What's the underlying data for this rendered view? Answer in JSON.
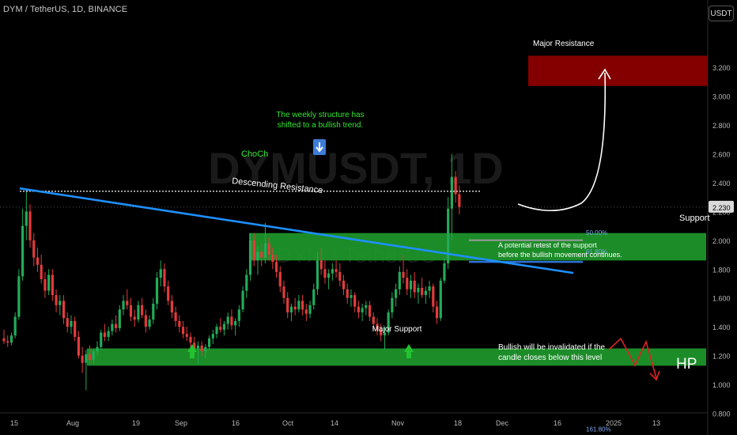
{
  "header": {
    "ticker": "DYM / TetherUS, 1D, BINANCE",
    "currency_button": "USDT"
  },
  "watermark": {
    "symbol": "DYMUSDT, 1D",
    "name": "DYM / TetherUS"
  },
  "colors": {
    "up": "#22ab5a",
    "down": "#e23b3b",
    "support_zone": "#1f9b2c",
    "resistance_zone": "#8b0000",
    "trendline": "#1e90ff",
    "annotation_green": "#32e532"
  },
  "chart_data": {
    "type": "candlestick",
    "y_axis": {
      "ticks": [
        "3.200",
        "3.000",
        "2.800",
        "2.600",
        "2.400",
        "2.200",
        "2.000",
        "1.800",
        "1.600",
        "1.400",
        "1.200",
        "1.000",
        "0.800"
      ],
      "range": [
        0.62,
        3.4
      ],
      "current_price": "2.230"
    },
    "x_axis": {
      "ticks": [
        "15",
        "Aug",
        "19",
        "Sep",
        "16",
        "Oct",
        "14",
        "Nov",
        "18",
        "Dec",
        "16",
        "2025",
        "13"
      ]
    },
    "candles": [
      {
        "o": 1.32,
        "h": 1.38,
        "l": 1.28,
        "c": 1.3
      },
      {
        "o": 1.3,
        "h": 1.34,
        "l": 1.26,
        "c": 1.29
      },
      {
        "o": 1.29,
        "h": 1.36,
        "l": 1.27,
        "c": 1.34
      },
      {
        "o": 1.34,
        "h": 1.5,
        "l": 1.32,
        "c": 1.47
      },
      {
        "o": 1.47,
        "h": 1.8,
        "l": 1.45,
        "c": 1.75
      },
      {
        "o": 1.75,
        "h": 2.22,
        "l": 1.72,
        "c": 2.1
      },
      {
        "o": 2.1,
        "h": 2.35,
        "l": 2.0,
        "c": 2.2
      },
      {
        "o": 2.2,
        "h": 2.25,
        "l": 1.95,
        "c": 2.0
      },
      {
        "o": 2.0,
        "h": 2.05,
        "l": 1.82,
        "c": 1.88
      },
      {
        "o": 1.88,
        "h": 1.95,
        "l": 1.78,
        "c": 1.83
      },
      {
        "o": 1.83,
        "h": 1.9,
        "l": 1.7,
        "c": 1.73
      },
      {
        "o": 1.73,
        "h": 1.78,
        "l": 1.6,
        "c": 1.65
      },
      {
        "o": 1.65,
        "h": 1.8,
        "l": 1.62,
        "c": 1.76
      },
      {
        "o": 1.76,
        "h": 1.8,
        "l": 1.58,
        "c": 1.62
      },
      {
        "o": 1.62,
        "h": 1.66,
        "l": 1.5,
        "c": 1.55
      },
      {
        "o": 1.55,
        "h": 1.62,
        "l": 1.48,
        "c": 1.58
      },
      {
        "o": 1.58,
        "h": 1.62,
        "l": 1.42,
        "c": 1.46
      },
      {
        "o": 1.46,
        "h": 1.5,
        "l": 1.36,
        "c": 1.4
      },
      {
        "o": 1.4,
        "h": 1.48,
        "l": 1.35,
        "c": 1.44
      },
      {
        "o": 1.44,
        "h": 1.47,
        "l": 1.3,
        "c": 1.33
      },
      {
        "o": 1.33,
        "h": 1.37,
        "l": 1.18,
        "c": 1.2
      },
      {
        "o": 1.2,
        "h": 1.26,
        "l": 1.08,
        "c": 1.15
      },
      {
        "o": 1.15,
        "h": 1.24,
        "l": 0.96,
        "c": 1.21
      },
      {
        "o": 1.21,
        "h": 1.27,
        "l": 1.14,
        "c": 1.17
      },
      {
        "o": 1.17,
        "h": 1.25,
        "l": 1.14,
        "c": 1.23
      },
      {
        "o": 1.23,
        "h": 1.3,
        "l": 1.2,
        "c": 1.26
      },
      {
        "o": 1.26,
        "h": 1.38,
        "l": 1.24,
        "c": 1.36
      },
      {
        "o": 1.36,
        "h": 1.42,
        "l": 1.3,
        "c": 1.33
      },
      {
        "o": 1.33,
        "h": 1.4,
        "l": 1.3,
        "c": 1.37
      },
      {
        "o": 1.37,
        "h": 1.45,
        "l": 1.34,
        "c": 1.42
      },
      {
        "o": 1.42,
        "h": 1.48,
        "l": 1.36,
        "c": 1.39
      },
      {
        "o": 1.39,
        "h": 1.55,
        "l": 1.37,
        "c": 1.52
      },
      {
        "o": 1.52,
        "h": 1.62,
        "l": 1.48,
        "c": 1.58
      },
      {
        "o": 1.58,
        "h": 1.66,
        "l": 1.52,
        "c": 1.55
      },
      {
        "o": 1.55,
        "h": 1.6,
        "l": 1.44,
        "c": 1.47
      },
      {
        "o": 1.47,
        "h": 1.52,
        "l": 1.4,
        "c": 1.45
      },
      {
        "o": 1.45,
        "h": 1.58,
        "l": 1.43,
        "c": 1.55
      },
      {
        "o": 1.55,
        "h": 1.6,
        "l": 1.46,
        "c": 1.48
      },
      {
        "o": 1.48,
        "h": 1.52,
        "l": 1.36,
        "c": 1.4
      },
      {
        "o": 1.4,
        "h": 1.48,
        "l": 1.38,
        "c": 1.45
      },
      {
        "o": 1.45,
        "h": 1.6,
        "l": 1.42,
        "c": 1.56
      },
      {
        "o": 1.56,
        "h": 1.78,
        "l": 1.52,
        "c": 1.74
      },
      {
        "o": 1.74,
        "h": 1.86,
        "l": 1.68,
        "c": 1.8
      },
      {
        "o": 1.8,
        "h": 1.84,
        "l": 1.64,
        "c": 1.68
      },
      {
        "o": 1.68,
        "h": 1.72,
        "l": 1.55,
        "c": 1.58
      },
      {
        "o": 1.58,
        "h": 1.62,
        "l": 1.46,
        "c": 1.5
      },
      {
        "o": 1.5,
        "h": 1.54,
        "l": 1.4,
        "c": 1.44
      },
      {
        "o": 1.44,
        "h": 1.48,
        "l": 1.36,
        "c": 1.4
      },
      {
        "o": 1.4,
        "h": 1.44,
        "l": 1.32,
        "c": 1.35
      },
      {
        "o": 1.35,
        "h": 1.4,
        "l": 1.3,
        "c": 1.33
      },
      {
        "o": 1.33,
        "h": 1.36,
        "l": 1.26,
        "c": 1.29
      },
      {
        "o": 1.29,
        "h": 1.33,
        "l": 1.22,
        "c": 1.25
      },
      {
        "o": 1.25,
        "h": 1.3,
        "l": 1.14,
        "c": 1.27
      },
      {
        "o": 1.27,
        "h": 1.3,
        "l": 1.2,
        "c": 1.23
      },
      {
        "o": 1.23,
        "h": 1.28,
        "l": 1.18,
        "c": 1.26
      },
      {
        "o": 1.26,
        "h": 1.34,
        "l": 1.24,
        "c": 1.32
      },
      {
        "o": 1.32,
        "h": 1.38,
        "l": 1.28,
        "c": 1.35
      },
      {
        "o": 1.35,
        "h": 1.42,
        "l": 1.32,
        "c": 1.4
      },
      {
        "o": 1.4,
        "h": 1.46,
        "l": 1.36,
        "c": 1.38
      },
      {
        "o": 1.38,
        "h": 1.44,
        "l": 1.34,
        "c": 1.42
      },
      {
        "o": 1.42,
        "h": 1.5,
        "l": 1.38,
        "c": 1.47
      },
      {
        "o": 1.47,
        "h": 1.52,
        "l": 1.38,
        "c": 1.41
      },
      {
        "o": 1.41,
        "h": 1.46,
        "l": 1.34,
        "c": 1.44
      },
      {
        "o": 1.44,
        "h": 1.55,
        "l": 1.4,
        "c": 1.52
      },
      {
        "o": 1.52,
        "h": 1.68,
        "l": 1.5,
        "c": 1.65
      },
      {
        "o": 1.65,
        "h": 1.8,
        "l": 1.6,
        "c": 1.76
      },
      {
        "o": 1.76,
        "h": 2.05,
        "l": 1.72,
        "c": 2.0
      },
      {
        "o": 2.0,
        "h": 2.05,
        "l": 1.82,
        "c": 1.86
      },
      {
        "o": 1.86,
        "h": 1.96,
        "l": 1.76,
        "c": 1.92
      },
      {
        "o": 1.92,
        "h": 1.98,
        "l": 1.82,
        "c": 1.88
      },
      {
        "o": 1.88,
        "h": 2.12,
        "l": 1.84,
        "c": 1.98
      },
      {
        "o": 1.98,
        "h": 2.02,
        "l": 1.86,
        "c": 1.9
      },
      {
        "o": 1.9,
        "h": 1.95,
        "l": 1.8,
        "c": 1.85
      },
      {
        "o": 1.85,
        "h": 1.9,
        "l": 1.74,
        "c": 1.78
      },
      {
        "o": 1.78,
        "h": 1.82,
        "l": 1.64,
        "c": 1.68
      },
      {
        "o": 1.68,
        "h": 1.72,
        "l": 1.56,
        "c": 1.6
      },
      {
        "o": 1.6,
        "h": 1.64,
        "l": 1.46,
        "c": 1.5
      },
      {
        "o": 1.5,
        "h": 1.56,
        "l": 1.44,
        "c": 1.54
      },
      {
        "o": 1.54,
        "h": 1.6,
        "l": 1.48,
        "c": 1.52
      },
      {
        "o": 1.52,
        "h": 1.62,
        "l": 1.5,
        "c": 1.58
      },
      {
        "o": 1.58,
        "h": 1.62,
        "l": 1.48,
        "c": 1.52
      },
      {
        "o": 1.52,
        "h": 1.56,
        "l": 1.44,
        "c": 1.49
      },
      {
        "o": 1.49,
        "h": 1.58,
        "l": 1.46,
        "c": 1.55
      },
      {
        "o": 1.55,
        "h": 1.7,
        "l": 1.52,
        "c": 1.66
      },
      {
        "o": 1.66,
        "h": 1.92,
        "l": 1.62,
        "c": 1.86
      },
      {
        "o": 1.86,
        "h": 1.94,
        "l": 1.76,
        "c": 1.8
      },
      {
        "o": 1.8,
        "h": 1.86,
        "l": 1.7,
        "c": 1.74
      },
      {
        "o": 1.74,
        "h": 1.8,
        "l": 1.66,
        "c": 1.77
      },
      {
        "o": 1.77,
        "h": 1.84,
        "l": 1.72,
        "c": 1.8
      },
      {
        "o": 1.8,
        "h": 1.86,
        "l": 1.74,
        "c": 1.78
      },
      {
        "o": 1.78,
        "h": 1.84,
        "l": 1.68,
        "c": 1.72
      },
      {
        "o": 1.72,
        "h": 1.76,
        "l": 1.62,
        "c": 1.66
      },
      {
        "o": 1.66,
        "h": 1.7,
        "l": 1.56,
        "c": 1.6
      },
      {
        "o": 1.6,
        "h": 1.66,
        "l": 1.54,
        "c": 1.62
      },
      {
        "o": 1.62,
        "h": 1.64,
        "l": 1.5,
        "c": 1.54
      },
      {
        "o": 1.54,
        "h": 1.58,
        "l": 1.46,
        "c": 1.5
      },
      {
        "o": 1.5,
        "h": 1.56,
        "l": 1.44,
        "c": 1.53
      },
      {
        "o": 1.53,
        "h": 1.58,
        "l": 1.48,
        "c": 1.55
      },
      {
        "o": 1.55,
        "h": 1.58,
        "l": 1.44,
        "c": 1.47
      },
      {
        "o": 1.47,
        "h": 1.5,
        "l": 1.38,
        "c": 1.42
      },
      {
        "o": 1.42,
        "h": 1.46,
        "l": 1.34,
        "c": 1.38
      },
      {
        "o": 1.38,
        "h": 1.42,
        "l": 1.3,
        "c": 1.34
      },
      {
        "o": 1.34,
        "h": 1.4,
        "l": 1.24,
        "c": 1.36
      },
      {
        "o": 1.36,
        "h": 1.52,
        "l": 1.34,
        "c": 1.5
      },
      {
        "o": 1.5,
        "h": 1.64,
        "l": 1.46,
        "c": 1.6
      },
      {
        "o": 1.6,
        "h": 1.7,
        "l": 1.54,
        "c": 1.66
      },
      {
        "o": 1.66,
        "h": 1.82,
        "l": 1.62,
        "c": 1.78
      },
      {
        "o": 1.78,
        "h": 1.9,
        "l": 1.7,
        "c": 1.74
      },
      {
        "o": 1.74,
        "h": 1.8,
        "l": 1.62,
        "c": 1.66
      },
      {
        "o": 1.66,
        "h": 1.76,
        "l": 1.6,
        "c": 1.72
      },
      {
        "o": 1.72,
        "h": 1.78,
        "l": 1.6,
        "c": 1.64
      },
      {
        "o": 1.64,
        "h": 1.7,
        "l": 1.56,
        "c": 1.67
      },
      {
        "o": 1.67,
        "h": 1.74,
        "l": 1.6,
        "c": 1.62
      },
      {
        "o": 1.62,
        "h": 1.68,
        "l": 1.56,
        "c": 1.65
      },
      {
        "o": 1.65,
        "h": 1.72,
        "l": 1.6,
        "c": 1.68
      },
      {
        "o": 1.68,
        "h": 1.7,
        "l": 1.5,
        "c": 1.54
      },
      {
        "o": 1.54,
        "h": 1.58,
        "l": 1.42,
        "c": 1.46
      },
      {
        "o": 1.46,
        "h": 1.74,
        "l": 1.44,
        "c": 1.72
      },
      {
        "o": 1.72,
        "h": 1.88,
        "l": 1.7,
        "c": 1.84
      },
      {
        "o": 1.84,
        "h": 2.3,
        "l": 1.8,
        "c": 2.22
      },
      {
        "o": 2.22,
        "h": 2.6,
        "l": 2.0,
        "c": 2.44
      },
      {
        "o": 2.44,
        "h": 2.48,
        "l": 2.26,
        "c": 2.32
      },
      {
        "o": 2.32,
        "h": 2.38,
        "l": 2.18,
        "c": 2.23
      }
    ],
    "zones": [
      {
        "name": "Major Resistance",
        "from": 3.07,
        "to": 3.28
      },
      {
        "name": "Support",
        "from": 1.86,
        "to": 2.05
      },
      {
        "name": "Major Support",
        "from": 1.13,
        "to": 1.25
      }
    ],
    "levels": [
      {
        "label": "50.00%",
        "value": 2.0
      },
      {
        "label": "61.80%",
        "value": 1.85
      },
      {
        "label": "161.80%",
        "value": 0.62
      }
    ],
    "choch_level": 2.34,
    "trendline": {
      "from": 2.36,
      "to": 1.85
    }
  },
  "annotations": {
    "weekly_structure": [
      "The weekly structure has",
      "shifted to a bullish trend."
    ],
    "choch": "ChoCh",
    "descending_resistance": "Descending Resistance",
    "major_resistance": "Major Resistance",
    "support": "Support",
    "major_support": "Major Support",
    "retest": [
      "A potential retest of the support",
      "before the bullish movement continues."
    ],
    "invalidation": [
      "Bullish will be invalidated if the",
      "candle closes below this level"
    ],
    "hp": "HP"
  }
}
